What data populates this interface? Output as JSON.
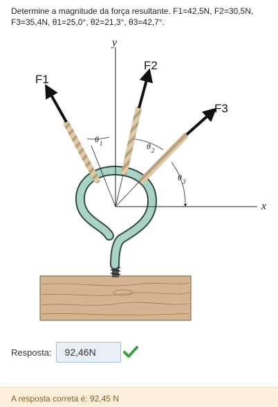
{
  "question": {
    "text": "Determine a magnitude da força resultante. F1=42,5N, F2=30,5N, F3=35,4N, θ1=25,0°, θ2=21,3°, θ3=42,7°."
  },
  "figure": {
    "axis_y": "y",
    "axis_x": "x",
    "forces": [
      "F1",
      "F2",
      "F3"
    ],
    "thetas": [
      {
        "symbol": "θ",
        "sub": "1"
      },
      {
        "symbol": "θ",
        "sub": "2"
      },
      {
        "symbol": "θ",
        "sub": "3"
      }
    ],
    "colors": {
      "ring": "#a8d3c5",
      "ring_outline": "#2f4a44",
      "rope": "#d8c6a6",
      "wood": "#d6b492"
    }
  },
  "answer": {
    "label": "Resposta:",
    "value": "92,46N",
    "status_icon": "check-icon",
    "status_color": "#3aa042"
  },
  "feedback": {
    "text": "A resposta correta é: 92,45 N"
  }
}
